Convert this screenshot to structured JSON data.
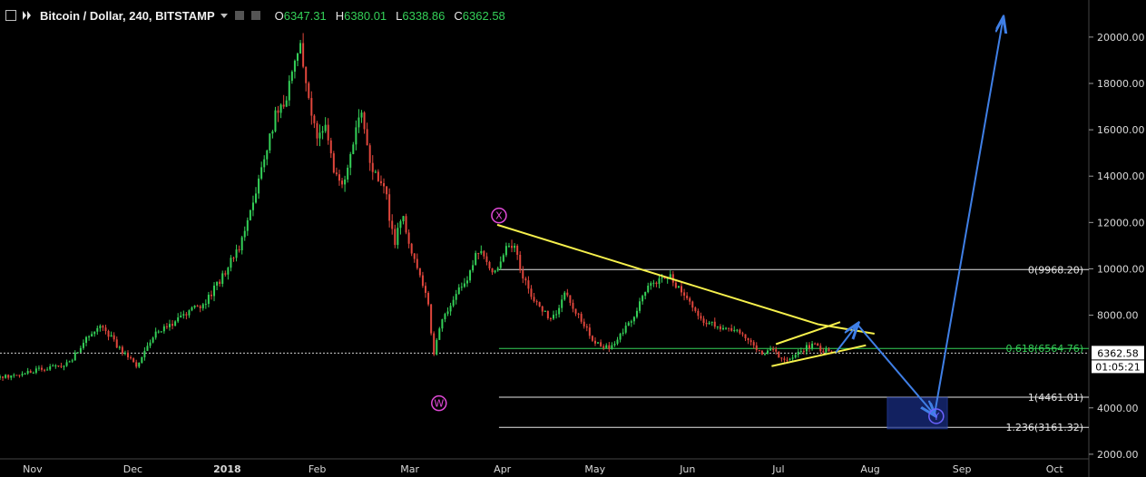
{
  "header": {
    "symbol": "Bitcoin / Dollar, 240, BITSTAMP",
    "ohlc": [
      {
        "k": "O",
        "v": "6347.31"
      },
      {
        "k": "H",
        "v": "6380.01"
      },
      {
        "k": "L",
        "v": "6338.86"
      },
      {
        "k": "C",
        "v": "6362.58"
      }
    ],
    "colors": {
      "up": "#34d058",
      "down": "#e0463c",
      "text": "#e6e6e6"
    }
  },
  "chart_data": {
    "type": "candlestick",
    "x_ticks": [
      "Nov",
      "Dec",
      "2018",
      "Feb",
      "Mar",
      "Apr",
      "May",
      "Jun",
      "Jul",
      "Aug",
      "Sep",
      "Oct"
    ],
    "y_ticks": [
      "20000.00",
      "18000.00",
      "16000.00",
      "14000.00",
      "12000.00",
      "10000.00",
      "8000.00",
      "4000.00",
      "2000.00"
    ],
    "y_label_note": "",
    "price_now": "6362.58",
    "countdown": "01:05:21",
    "fib_levels": [
      {
        "label": "0(9968.20)",
        "value": 9968.2,
        "color": "#e6e6e6"
      },
      {
        "label": "0.618(6564.76)",
        "value": 6564.76,
        "color": "#34d058"
      },
      {
        "label": "1(4461.01)",
        "value": 4461.01,
        "color": "#e6e6e6"
      },
      {
        "label": "1.236(3161.32)",
        "value": 3161.32,
        "color": "#e6e6e6"
      }
    ],
    "wave_labels": [
      "W",
      "X",
      "Y"
    ],
    "price_path": [
      [
        0.0,
        5300
      ],
      [
        0.4,
        5600
      ],
      [
        0.8,
        5900
      ],
      [
        1.0,
        7000
      ],
      [
        1.2,
        7500
      ],
      [
        1.4,
        6500
      ],
      [
        1.6,
        5800
      ],
      [
        1.8,
        7200
      ],
      [
        2.0,
        7600
      ],
      [
        2.2,
        8100
      ],
      [
        2.4,
        8600
      ],
      [
        2.6,
        9700
      ],
      [
        2.8,
        11000
      ],
      [
        3.0,
        13500
      ],
      [
        3.2,
        16500
      ],
      [
        3.35,
        17500
      ],
      [
        3.5,
        19500
      ],
      [
        3.6,
        17500
      ],
      [
        3.7,
        15500
      ],
      [
        3.8,
        16500
      ],
      [
        3.9,
        14000
      ],
      [
        4.0,
        13500
      ],
      [
        4.1,
        15200
      ],
      [
        4.2,
        17100
      ],
      [
        4.3,
        14800
      ],
      [
        4.4,
        14000
      ],
      [
        4.5,
        13200
      ],
      [
        4.6,
        11000
      ],
      [
        4.7,
        12500
      ],
      [
        4.8,
        10500
      ],
      [
        4.9,
        9800
      ],
      [
        5.0,
        8500
      ],
      [
        5.05,
        6100
      ],
      [
        5.15,
        7800
      ],
      [
        5.3,
        8800
      ],
      [
        5.45,
        9600
      ],
      [
        5.6,
        11000
      ],
      [
        5.7,
        10000
      ],
      [
        5.8,
        9800
      ],
      [
        5.9,
        11000
      ],
      [
        6.0,
        11100
      ],
      [
        6.1,
        9600
      ],
      [
        6.2,
        8900
      ],
      [
        6.3,
        8300
      ],
      [
        6.4,
        7900
      ],
      [
        6.5,
        8200
      ],
      [
        6.6,
        9000
      ],
      [
        6.7,
        8300
      ],
      [
        6.8,
        7700
      ],
      [
        6.9,
        7000
      ],
      [
        7.0,
        6700
      ],
      [
        7.1,
        6600
      ],
      [
        7.2,
        7000
      ],
      [
        7.3,
        7500
      ],
      [
        7.4,
        8000
      ],
      [
        7.5,
        8900
      ],
      [
        7.6,
        9300
      ],
      [
        7.7,
        9500
      ],
      [
        7.8,
        9700
      ],
      [
        7.9,
        9200
      ],
      [
        8.0,
        8700
      ],
      [
        8.1,
        8200
      ],
      [
        8.2,
        7800
      ],
      [
        8.3,
        7600
      ],
      [
        8.4,
        7400
      ],
      [
        8.5,
        7400
      ],
      [
        8.6,
        7300
      ],
      [
        8.7,
        7100
      ],
      [
        8.8,
        6600
      ],
      [
        8.9,
        6400
      ],
      [
        9.0,
        6500
      ],
      [
        9.1,
        6200
      ],
      [
        9.2,
        6000
      ],
      [
        9.3,
        6300
      ],
      [
        9.4,
        6600
      ],
      [
        9.5,
        6700
      ],
      [
        9.6,
        6500
      ],
      [
        9.7,
        6400
      ]
    ],
    "overlays": {
      "yellow": [
        {
          "from": [
            5.8,
            11900
          ],
          "to": [
            9.55,
            7600
          ]
        },
        {
          "from": [
            9.55,
            7600
          ],
          "to": [
            10.2,
            7200
          ]
        },
        {
          "from": [
            9.05,
            6750
          ],
          "to": [
            9.8,
            7700
          ]
        },
        {
          "from": [
            9.0,
            5800
          ],
          "to": [
            10.1,
            6700
          ]
        }
      ],
      "blue": [
        {
          "from": [
            9.75,
            6400
          ],
          "to": [
            10.0,
            7600
          ]
        },
        {
          "from": [
            10.0,
            7600
          ],
          "to": [
            10.9,
            3700
          ]
        },
        {
          "from": [
            10.9,
            3700
          ],
          "to": [
            11.7,
            20800
          ]
        }
      ],
      "target_box": {
        "x0": 10.35,
        "x1": 11.05,
        "y0": 3100,
        "y1": 4450
      }
    },
    "x_range": [
      0,
      12.7
    ],
    "y_range": [
      1800,
      21600
    ]
  }
}
